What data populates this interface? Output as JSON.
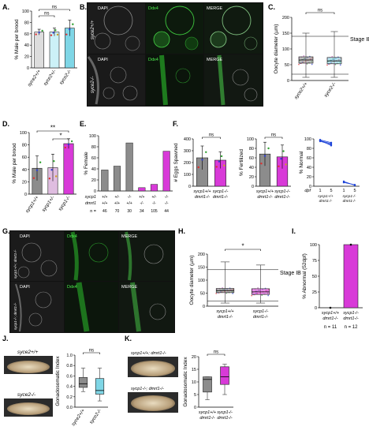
{
  "panels": {
    "A": "A.",
    "B": "B.",
    "C": "C.",
    "D": "D.",
    "E": "E.",
    "F": "F.",
    "G": "G.",
    "H": "H.",
    "I": "I.",
    "J": "J.",
    "K": "K."
  },
  "colors": {
    "gray": "#8c8c8c",
    "magenta": "#d83ad8",
    "cyan": "#7fd6e6",
    "lightcyan": "#ccf1f7",
    "green": "#2fd02f",
    "blue": "#1d43d8",
    "micro_dark": "#1a1a1a"
  },
  "micro": {
    "dapi": "DAPI",
    "ddx4": "Ddx4",
    "merge": "MERGE",
    "geno_b1": "syce2+/+",
    "geno_b2": "syce2-/-",
    "geno_g1": "sycp1+/+; dmrt1-/-",
    "geno_g2": "sycp1-/-; dmrt1-/-"
  },
  "chart_data": [
    {
      "id": "A",
      "type": "bar",
      "categories": [
        "syce2+/+",
        "syce2+/-",
        "syce2-/-"
      ],
      "values": [
        63,
        63,
        70
      ],
      "errors": [
        5,
        7,
        14
      ],
      "ylabel": "% Male per brood",
      "ylim": [
        0,
        100
      ],
      "yticks": [
        "0",
        "20",
        "40",
        "60",
        "80",
        "100"
      ],
      "significance": [
        "ns",
        "ns"
      ]
    },
    {
      "id": "C",
      "type": "box",
      "categories": [
        "syce2+/+",
        "syce2-/-"
      ],
      "ylabel": "Oocyte diameter (µm)",
      "ylim": [
        0,
        200
      ],
      "yticks": [
        "0",
        "50",
        "100",
        "150",
        "200"
      ],
      "boxes": [
        {
          "min": 10,
          "q1": 55,
          "median": 65,
          "q3": 75,
          "max": 150
        },
        {
          "min": 10,
          "q1": 53,
          "median": 62,
          "q3": 73,
          "max": 155
        }
      ],
      "reference_line": 140,
      "reference_label": "Stage IB",
      "significance": [
        "ns"
      ]
    },
    {
      "id": "D",
      "type": "bar",
      "categories": [
        "sycp1+/+",
        "sycp1+/-",
        "sycp1-/-"
      ],
      "values": [
        42,
        43,
        82
      ],
      "errors": [
        20,
        22,
        8
      ],
      "ylabel": "% Male per brood",
      "ylim": [
        0,
        100
      ],
      "yticks": [
        "0",
        "20",
        "40",
        "60",
        "80",
        "100"
      ],
      "significance": [
        "**",
        "*"
      ]
    },
    {
      "id": "E",
      "type": "bar",
      "ylabel": "% Female",
      "ylim": [
        0,
        100
      ],
      "yticks": [
        "0",
        "20",
        "40",
        "60",
        "80",
        "100"
      ],
      "row_labels": [
        "sycp1",
        "dmrt1",
        "n ="
      ],
      "sycp1": [
        "+/+",
        "+/-",
        "-/-",
        "+/+",
        "+/-",
        "-/-"
      ],
      "dmrt1": [
        "+/+",
        "+/+",
        "+/+",
        "-/-",
        "-/-",
        "-/-"
      ],
      "n": [
        "46",
        "70",
        "30",
        "34",
        "105",
        "44"
      ],
      "values": [
        38,
        45,
        87,
        6,
        12,
        72
      ]
    },
    {
      "id": "F1",
      "type": "bar",
      "categories": [
        "sycp1+/+ dmrt1-/-",
        "sycp1-/- dmrt1-/-"
      ],
      "values": [
        240,
        220
      ],
      "errors": [
        100,
        70
      ],
      "ylabel": "# Eggs Spawned",
      "ylim": [
        0,
        400
      ],
      "yticks": [
        "0",
        "100",
        "200",
        "300",
        "400"
      ],
      "significance": [
        "ns"
      ]
    },
    {
      "id": "F2",
      "type": "bar",
      "categories": [
        "sycp1+/+ dmrt1-/-",
        "sycp1-/- dmrt1-/-"
      ],
      "values": [
        68,
        62
      ],
      "errors": [
        25,
        25
      ],
      "ylabel": "% Fertilized",
      "ylim": [
        0,
        100
      ],
      "yticks": [
        "0",
        "20",
        "40",
        "60",
        "80",
        "100"
      ],
      "significance": [
        "ns"
      ]
    },
    {
      "id": "F3",
      "type": "line",
      "ylabel": "% Normal",
      "ylim": [
        0,
        100
      ],
      "yticks": [
        "0",
        "20",
        "40",
        "60",
        "80",
        "100"
      ],
      "xticks": [
        "1",
        "5",
        "1",
        "5"
      ],
      "xlabel_dpf": "dpf",
      "groups": [
        "sycp1+/+ dmrt1-/-",
        "sycp1-/- dmrt1-/-"
      ],
      "lines_group1": [
        [
          98,
          92
        ],
        [
          96,
          90
        ],
        [
          97,
          86
        ],
        [
          95,
          88
        ]
      ],
      "lines_group2": [
        [
          10,
          2
        ],
        [
          8,
          3
        ]
      ]
    },
    {
      "id": "H",
      "type": "box",
      "categories": [
        "sycp1+/+ dmrt1-/-",
        "sycp1-/- dmrt1-/-"
      ],
      "ylabel": "Oocyte diameter (µm)",
      "ylim": [
        0,
        200
      ],
      "yticks": [
        "0",
        "50",
        "100",
        "150",
        "200"
      ],
      "boxes": [
        {
          "min": 12,
          "q1": 52,
          "median": 60,
          "q3": 68,
          "max": 170
        },
        {
          "min": 12,
          "q1": 45,
          "median": 55,
          "q3": 67,
          "max": 158
        }
      ],
      "reference_line": 140,
      "reference_label": "Stage IB",
      "significance": [
        "*"
      ]
    },
    {
      "id": "I",
      "type": "bar",
      "categories": [
        "sycp1+/+ dmrt1-/-",
        "sycp1-/- dmrt1-/-"
      ],
      "values": [
        0,
        100
      ],
      "ylabel": "% Abnormal (52dpf)",
      "ylim": [
        0,
        100
      ],
      "yticks": [
        "0",
        "25",
        "50",
        "75",
        "100"
      ],
      "n_labels": [
        "n = 11",
        "n = 12"
      ]
    },
    {
      "id": "J",
      "type": "box",
      "categories": [
        "syce2+/+",
        "syce2-/-"
      ],
      "ylabel": "Gonadosomatic Index",
      "ylim": [
        0,
        1.0
      ],
      "yticks": [
        "0.0",
        "0.2",
        "0.4",
        "0.6",
        "0.8",
        "1.0"
      ],
      "boxes": [
        {
          "min": 0.3,
          "q1": 0.38,
          "median": 0.45,
          "q3": 0.57,
          "max": 0.75
        },
        {
          "min": 0.12,
          "q1": 0.25,
          "median": 0.32,
          "q3": 0.55,
          "max": 0.75
        }
      ],
      "significance": [
        "ns"
      ],
      "photo_labels": [
        "syce2+/+",
        "syce2-/-"
      ]
    },
    {
      "id": "K",
      "type": "box",
      "categories": [
        "sycp1+/+ dmrt1-/-",
        "sycp1-/- dmrt1-/-"
      ],
      "ylabel": "Gonadosomatic Index",
      "ylim": [
        0,
        20
      ],
      "yticks": [
        "0",
        "5",
        "10",
        "15",
        "20"
      ],
      "boxes": [
        {
          "min": 3,
          "q1": 6,
          "median": 11,
          "q3": 12,
          "max": 12
        },
        {
          "min": 5,
          "q1": 9,
          "median": 12,
          "q3": 16,
          "max": 17
        }
      ],
      "significance": [
        "ns"
      ],
      "photo_labels": [
        "sycp1+/+; dmrt1-/-",
        "sycp1-/-; dmrt1-/-"
      ]
    }
  ]
}
